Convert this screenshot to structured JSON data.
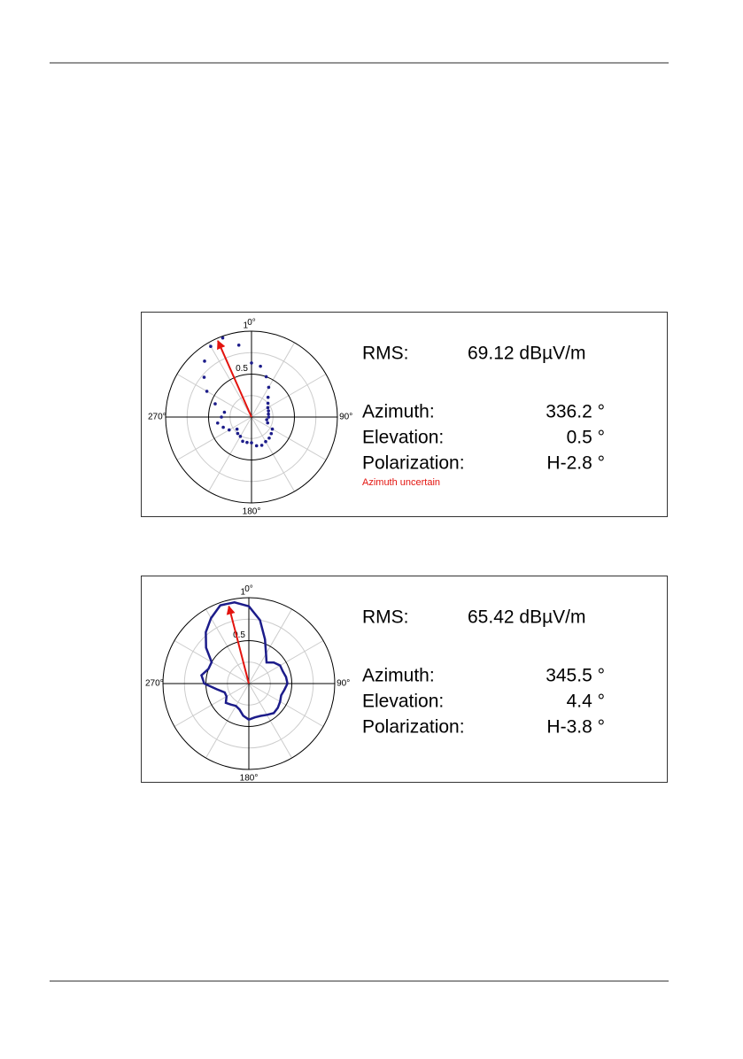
{
  "chart_data": [
    {
      "type": "polar",
      "style": "dots",
      "color": "#1c1c8a",
      "theta": [
        0,
        10,
        20,
        30,
        40,
        50,
        60,
        70,
        80,
        90,
        100,
        110,
        120,
        130,
        140,
        150,
        160,
        170,
        180,
        190,
        200,
        210,
        220,
        230,
        240,
        250,
        260,
        270,
        280,
        290,
        300,
        310,
        320,
        330,
        340,
        350
      ],
      "r": [
        0.63,
        0.6,
        0.5,
        0.4,
        0.3,
        0.25,
        0.22,
        0.21,
        0.2,
        0.2,
        0.18,
        0.2,
        0.28,
        0.3,
        0.32,
        0.33,
        0.35,
        0.34,
        0.3,
        0.3,
        0.3,
        0.26,
        0.25,
        0.22,
        0.3,
        0.35,
        0.4,
        0.35,
        0.32,
        0.45,
        0.6,
        0.72,
        0.85,
        0.95,
        0.98,
        0.85
      ],
      "rlim": [
        0,
        1
      ],
      "rticks": [
        0.5,
        1
      ],
      "rgrid": [
        0.25,
        0.75
      ],
      "thetaticks": [
        {
          "value": 0,
          "label": "0°"
        },
        {
          "value": 90,
          "label": "90°"
        },
        {
          "value": 180,
          "label": "180°"
        },
        {
          "value": 270,
          "label": "270°"
        }
      ],
      "thetagrid": [
        30,
        60,
        120,
        150,
        210,
        240,
        300,
        330
      ],
      "arrow": {
        "theta": 336.2,
        "r": 0.97,
        "color": "#e3140f"
      },
      "readouts": [
        {
          "label": "RMS:",
          "value": "69.12 dBµV/m"
        },
        {
          "label": "Azimuth:",
          "value": "336.2 °"
        },
        {
          "label": "Elevation:",
          "value": "0.5 °"
        },
        {
          "label": "Polarization:",
          "value": "H-2.8 °"
        }
      ],
      "note": "Azimuth uncertain"
    },
    {
      "type": "polar",
      "style": "line",
      "color": "#1c1c8a",
      "theta": [
        0,
        10,
        20,
        30,
        40,
        50,
        60,
        70,
        80,
        90,
        100,
        110,
        120,
        130,
        140,
        150,
        160,
        170,
        180,
        190,
        200,
        210,
        220,
        230,
        240,
        250,
        260,
        270,
        280,
        290,
        300,
        310,
        320,
        330,
        340,
        350
      ],
      "r": [
        0.9,
        0.75,
        0.55,
        0.4,
        0.32,
        0.38,
        0.42,
        0.42,
        0.44,
        0.45,
        0.42,
        0.4,
        0.42,
        0.44,
        0.45,
        0.42,
        0.4,
        0.4,
        0.42,
        0.38,
        0.32,
        0.3,
        0.32,
        0.35,
        0.3,
        0.3,
        0.38,
        0.52,
        0.56,
        0.5,
        0.5,
        0.65,
        0.78,
        0.88,
        0.97,
        0.96
      ],
      "rlim": [
        0,
        1
      ],
      "rticks": [
        0.5,
        1
      ],
      "rgrid": [
        0.25,
        0.75
      ],
      "thetaticks": [
        {
          "value": 0,
          "label": "0°"
        },
        {
          "value": 90,
          "label": "90°"
        },
        {
          "value": 180,
          "label": "180°"
        },
        {
          "value": 270,
          "label": "270°"
        }
      ],
      "thetagrid": [
        30,
        60,
        120,
        150,
        210,
        240,
        300,
        330
      ],
      "arrow": {
        "theta": 345.5,
        "r": 0.93,
        "color": "#e3140f"
      },
      "readouts": [
        {
          "label": "RMS:",
          "value": "65.42 dBµV/m"
        },
        {
          "label": "Azimuth:",
          "value": "345.5 °"
        },
        {
          "label": "Elevation:",
          "value": "4.4 °"
        },
        {
          "label": "Polarization:",
          "value": "H-3.8 °"
        }
      ]
    }
  ]
}
